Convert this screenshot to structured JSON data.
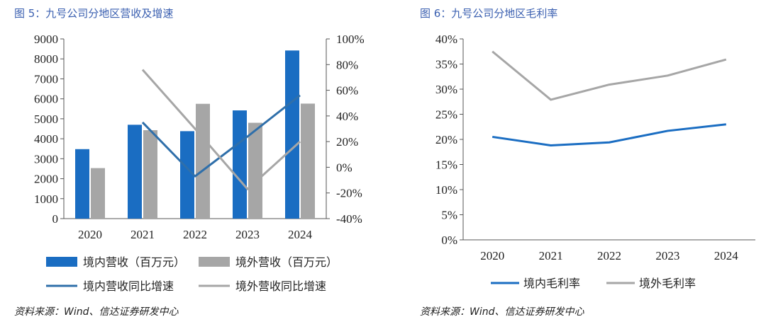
{
  "left": {
    "title": "图 5：九号公司分地区营收及增速",
    "source": "资料来源：Wind、信达证券研发中心"
  },
  "right": {
    "title": "图 6：九号公司分地区毛利率",
    "source": "资料来源：Wind、信达证券研发中心"
  },
  "chart_data": [
    {
      "type": "bar",
      "title": "",
      "categories": [
        "2020",
        "2021",
        "2022",
        "2023",
        "2024"
      ],
      "series": [
        {
          "name": "境内营收（百万元）",
          "kind": "bar",
          "axis": "left",
          "color": "#1a6dc2",
          "values": [
            3480,
            4700,
            4380,
            5420,
            8420
          ]
        },
        {
          "name": "境外营收（百万元）",
          "kind": "bar",
          "axis": "left",
          "color": "#a6a6a6",
          "values": [
            2530,
            4430,
            5750,
            4800,
            5760
          ]
        },
        {
          "name": "境内营收同比增速",
          "kind": "line",
          "axis": "right",
          "color": "#2f6faa",
          "values": [
            null,
            35,
            -7,
            24,
            56
          ]
        },
        {
          "name": "境外营收同比增速",
          "kind": "line",
          "axis": "right",
          "color": "#a6a6a6",
          "values": [
            null,
            76,
            30,
            -17,
            20
          ]
        }
      ],
      "ylim": [
        0,
        9000
      ],
      "yticks": [
        "0",
        "1000",
        "2000",
        "3000",
        "4000",
        "5000",
        "6000",
        "7000",
        "8000",
        "9000"
      ],
      "y2lim": [
        -40,
        100
      ],
      "y2ticks": [
        "-40%",
        "-20%",
        "0%",
        "20%",
        "40%",
        "60%",
        "80%",
        "100%"
      ],
      "legend_position": "bottom",
      "grid": false
    },
    {
      "type": "line",
      "title": "",
      "categories": [
        "2020",
        "2021",
        "2022",
        "2023",
        "2024"
      ],
      "series": [
        {
          "name": "境内毛利率",
          "color": "#1a6dc2",
          "values": [
            20.5,
            18.8,
            19.4,
            21.7,
            23.0
          ]
        },
        {
          "name": "境外毛利率",
          "color": "#a6a6a6",
          "values": [
            37.5,
            27.9,
            30.9,
            32.7,
            35.9
          ]
        }
      ],
      "ylim": [
        0,
        40
      ],
      "yticks": [
        "0%",
        "5%",
        "10%",
        "15%",
        "20%",
        "25%",
        "30%",
        "35%",
        "40%"
      ],
      "legend_position": "bottom",
      "grid": false
    }
  ]
}
